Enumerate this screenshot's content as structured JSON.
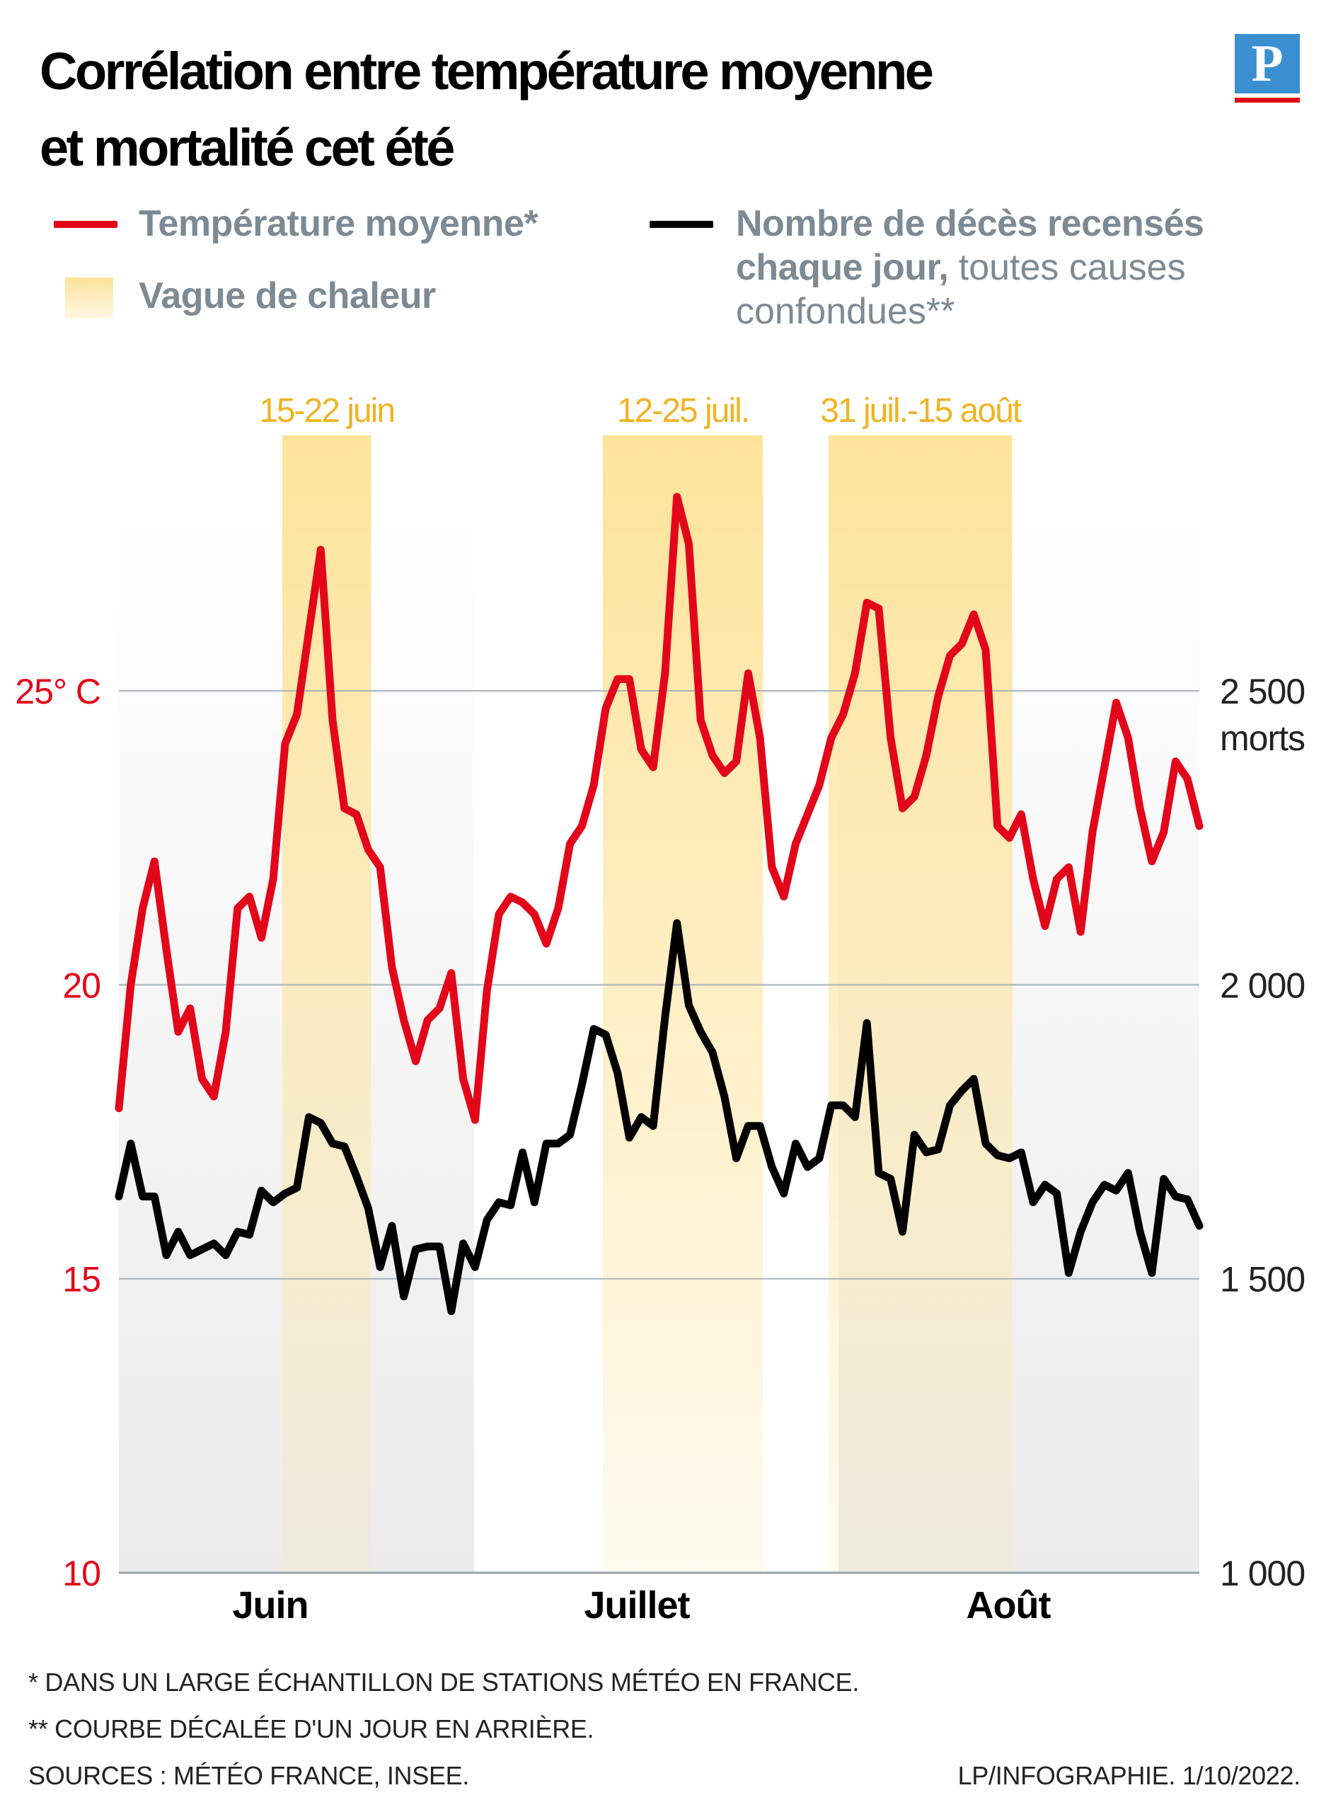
{
  "header": {
    "title_line1": "Corrélation entre température moyenne",
    "title_line2": "et mortalité cet été",
    "logo_letter": "P"
  },
  "legend": {
    "temperature": "Température moyenne*",
    "heatwave": "Vague de chaleur",
    "deaths_bold": "Nombre de décès recensés",
    "deaths_line2_bold": "chaque jour,",
    "deaths_line2_light": " toutes causes",
    "deaths_line3": "confondues**"
  },
  "footer": {
    "note1": "* DANS UN LARGE ÉCHANTILLON DE STATIONS MÉTÉO EN FRANCE.",
    "note2": "** COURBE DÉCALÉE D'UN JOUR EN ARRIÈRE.",
    "sources": "SOURCES : MÉTÉO FRANCE, INSEE.",
    "credit": "LP/INFOGRAPHIE.  1/10/2022."
  },
  "colors": {
    "temperature": "#e3061a",
    "deaths": "#000000",
    "heatwave": "#fde39a",
    "axis_text_left": "#e3061a",
    "legend_text": "#7d8a93",
    "band_label": "#f0b323",
    "logo": "#3a8fd0"
  },
  "chart_data": {
    "type": "line",
    "x_axis": {
      "months": [
        "Juin",
        "Juillet",
        "Août"
      ],
      "day_range": [
        1,
        92
      ]
    },
    "y_left": {
      "ticks": [
        10,
        15,
        20,
        25
      ],
      "tick_labels": [
        "10",
        "15",
        "20",
        "25° C"
      ],
      "ylim": [
        10,
        25
      ]
    },
    "y_right": {
      "ticks": [
        1000,
        1500,
        2000,
        2500
      ],
      "tick_labels": [
        "1 000",
        "1 500",
        "2 000",
        "2 500"
      ],
      "unit": "morts",
      "ylim": [
        1000,
        2500
      ]
    },
    "heatwaves": [
      {
        "label": "15-22 juin",
        "start_day": 15,
        "end_day": 22
      },
      {
        "label": "12-25 juil.",
        "start_day": 42,
        "end_day": 55
      },
      {
        "label": "31 juil.-15 août",
        "start_day": 61,
        "end_day": 76
      }
    ],
    "series": [
      {
        "name": "Température moyenne*",
        "axis": "left",
        "values": [
          17.9,
          20.0,
          21.3,
          22.1,
          20.6,
          19.2,
          19.6,
          18.4,
          18.1,
          19.2,
          21.3,
          21.5,
          20.8,
          21.8,
          24.1,
          24.6,
          26.0,
          27.4,
          24.5,
          23.0,
          22.9,
          22.3,
          22.0,
          20.3,
          19.4,
          18.7,
          19.4,
          19.6,
          20.2,
          18.4,
          17.7,
          19.9,
          21.2,
          21.5,
          21.4,
          21.2,
          20.7,
          21.3,
          22.4,
          22.7,
          23.4,
          24.7,
          25.2,
          25.2,
          24.0,
          23.7,
          25.3,
          28.3,
          27.5,
          24.5,
          23.9,
          23.6,
          23.8,
          25.3,
          24.2,
          22.0,
          21.5,
          22.4,
          22.9,
          23.4,
          24.2,
          24.6,
          25.3,
          26.5,
          26.4,
          24.2,
          23.0,
          23.2,
          23.9,
          24.9,
          25.6,
          25.8,
          26.3,
          25.7,
          22.7,
          22.5,
          22.9,
          21.8,
          21.0,
          21.8,
          22.0,
          20.9,
          22.6,
          23.7,
          24.8,
          24.2,
          23.0,
          22.1,
          22.6,
          23.8,
          23.5,
          22.7
        ]
      },
      {
        "name": "Nombre de décès recensés chaque jour, toutes causes confondues**",
        "axis": "right",
        "values": [
          1640,
          1730,
          1640,
          1640,
          1540,
          1580,
          1540,
          1550,
          1560,
          1540,
          1580,
          1575,
          1650,
          1630,
          1645,
          1655,
          1775,
          1765,
          1730,
          1725,
          1675,
          1620,
          1520,
          1590,
          1470,
          1550,
          1555,
          1555,
          1445,
          1560,
          1520,
          1600,
          1630,
          1625,
          1715,
          1630,
          1730,
          1730,
          1745,
          1830,
          1925,
          1915,
          1850,
          1740,
          1775,
          1760,
          1945,
          2105,
          1965,
          1920,
          1885,
          1810,
          1705,
          1760,
          1760,
          1690,
          1645,
          1730,
          1690,
          1705,
          1795,
          1795,
          1775,
          1935,
          1680,
          1670,
          1580,
          1745,
          1715,
          1720,
          1795,
          1820,
          1840,
          1730,
          1710,
          1705,
          1715,
          1630,
          1660,
          1645,
          1510,
          1580,
          1630,
          1660,
          1650,
          1680,
          1580,
          1510,
          1670,
          1640,
          1635,
          1590
        ]
      }
    ]
  }
}
